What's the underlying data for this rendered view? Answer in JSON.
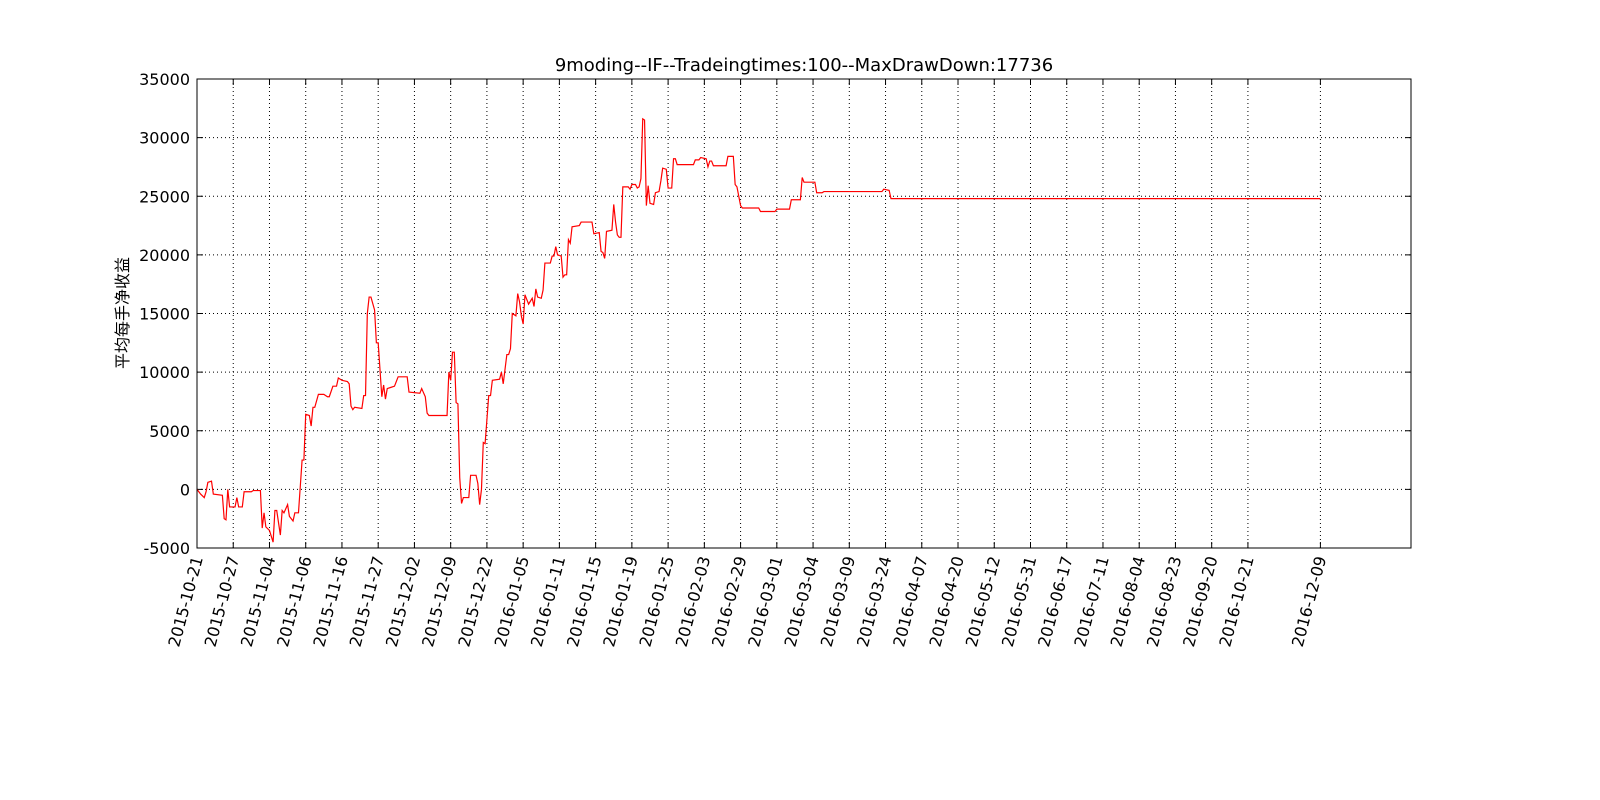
{
  "chart_data": {
    "type": "line",
    "title": "9moding--IF--Tradeingtimes:100--MaxDrawDown:17736",
    "y_label": "平均每手净收益",
    "grid": true,
    "color": "#ff0000",
    "xlim": [
      0,
      670
    ],
    "ylim": [
      -5000,
      35000
    ],
    "yticks": [
      -5000,
      0,
      5000,
      10000,
      15000,
      20000,
      25000,
      30000,
      35000
    ],
    "xticks": [
      {
        "value": 0,
        "label": "2015-10-21"
      },
      {
        "value": 20,
        "label": "2015-10-27"
      },
      {
        "value": 40,
        "label": "2015-11-04"
      },
      {
        "value": 60,
        "label": "2015-11-06"
      },
      {
        "value": 80,
        "label": "2015-11-16"
      },
      {
        "value": 100,
        "label": "2015-11-27"
      },
      {
        "value": 120,
        "label": "2015-12-02"
      },
      {
        "value": 140,
        "label": "2015-12-09"
      },
      {
        "value": 160,
        "label": "2015-12-22"
      },
      {
        "value": 180,
        "label": "2016-01-05"
      },
      {
        "value": 200,
        "label": "2016-01-11"
      },
      {
        "value": 220,
        "label": "2016-01-15"
      },
      {
        "value": 240,
        "label": "2016-01-19"
      },
      {
        "value": 260,
        "label": "2016-01-25"
      },
      {
        "value": 280,
        "label": "2016-02-03"
      },
      {
        "value": 300,
        "label": "2016-02-29"
      },
      {
        "value": 320,
        "label": "2016-03-01"
      },
      {
        "value": 340,
        "label": "2016-03-04"
      },
      {
        "value": 360,
        "label": "2016-03-09"
      },
      {
        "value": 380,
        "label": "2016-03-24"
      },
      {
        "value": 400,
        "label": "2016-04-07"
      },
      {
        "value": 420,
        "label": "2016-04-20"
      },
      {
        "value": 440,
        "label": "2016-05-12"
      },
      {
        "value": 460,
        "label": "2016-05-31"
      },
      {
        "value": 480,
        "label": "2016-06-17"
      },
      {
        "value": 500,
        "label": "2016-07-11"
      },
      {
        "value": 520,
        "label": "2016-08-04"
      },
      {
        "value": 540,
        "label": "2016-08-23"
      },
      {
        "value": 560,
        "label": "2016-09-20"
      },
      {
        "value": 580,
        "label": "2016-10-21"
      },
      {
        "value": 620,
        "label": "2016-12-09"
      }
    ],
    "x": [
      0,
      2,
      4,
      5,
      6,
      8,
      9,
      14,
      15,
      16,
      17,
      18,
      21,
      22,
      23,
      25,
      26,
      30,
      31,
      35,
      36,
      37,
      38,
      40,
      42,
      43,
      44,
      46,
      47,
      48,
      50,
      51,
      53,
      54,
      56,
      58,
      59,
      60,
      62,
      63,
      64,
      65,
      67,
      70,
      72,
      73,
      75,
      77,
      78,
      80,
      83,
      84,
      85,
      86,
      87,
      91,
      92,
      93,
      94,
      95,
      96,
      98,
      99,
      100,
      102,
      103,
      104,
      105,
      107,
      109,
      111,
      116,
      117,
      123,
      124,
      126,
      127,
      128,
      138,
      139,
      140,
      141,
      142,
      143,
      144,
      145,
      146,
      147,
      150,
      151,
      154,
      155,
      156,
      157,
      158,
      159,
      161,
      162,
      163,
      167,
      168,
      169,
      171,
      172,
      173,
      174,
      176,
      177,
      178,
      179,
      180,
      181,
      182,
      183,
      185,
      186,
      187,
      188,
      190,
      191,
      192,
      195,
      196,
      197,
      198,
      199,
      201,
      202,
      203,
      204,
      205,
      206,
      207,
      211,
      212,
      218,
      219,
      222,
      223,
      224,
      225,
      226,
      229,
      230,
      231,
      232,
      233,
      234,
      235,
      238,
      239,
      240,
      242,
      243,
      244,
      245,
      246,
      247,
      248,
      249,
      250,
      252,
      253,
      255,
      256,
      257,
      259,
      260,
      262,
      263,
      264,
      265,
      274,
      275,
      277,
      278,
      281,
      282,
      283,
      284,
      285,
      292,
      293,
      296,
      297,
      298,
      300,
      301,
      310,
      311,
      319,
      320,
      327,
      328,
      333,
      334,
      335,
      341,
      342,
      345,
      346,
      378,
      379,
      382,
      383,
      620
    ],
    "values": [
      0,
      -400,
      -700,
      -200,
      600,
      700,
      -400,
      -500,
      -2500,
      -2600,
      0,
      -1500,
      -1500,
      -700,
      -1500,
      -1500,
      -200,
      -200,
      -100,
      -100,
      -3300,
      -2000,
      -3200,
      -3500,
      -4500,
      -1800,
      -1800,
      -3900,
      -1800,
      -2000,
      -1300,
      -2300,
      -2700,
      -2000,
      -2000,
      2500,
      2500,
      6400,
      6300,
      5400,
      7000,
      7000,
      8100,
      8100,
      7900,
      7900,
      8800,
      8800,
      9500,
      9300,
      9200,
      9000,
      7100,
      6800,
      7000,
      6900,
      8000,
      8000,
      15000,
      16400,
      16400,
      15300,
      12500,
      12500,
      7900,
      8900,
      7700,
      8600,
      8700,
      8800,
      9600,
      9600,
      8300,
      8200,
      8600,
      7900,
      6500,
      6300,
      6300,
      10000,
      9300,
      11700,
      11700,
      7400,
      7300,
      1000,
      -1200,
      -700,
      -700,
      1200,
      1200,
      500,
      -1300,
      0,
      4000,
      3900,
      8000,
      8000,
      9300,
      9400,
      10000,
      9000,
      11500,
      11500,
      12000,
      15000,
      14800,
      16700,
      16000,
      14800,
      14100,
      16600,
      16200,
      15800,
      16300,
      15600,
      17100,
      16400,
      16300,
      17000,
      19300,
      19300,
      19900,
      19900,
      20700,
      20000,
      19900,
      18100,
      18300,
      18300,
      21300,
      21000,
      22400,
      22500,
      22800,
      22800,
      21800,
      21900,
      20300,
      20200,
      19700,
      22000,
      22100,
      24300,
      22800,
      21700,
      21500,
      21500,
      25800,
      25800,
      25600,
      26000,
      26000,
      25700,
      25800,
      26500,
      31600,
      31500,
      24200,
      25900,
      24400,
      24300,
      25300,
      25400,
      26300,
      27400,
      27300,
      25700,
      25700,
      28200,
      28200,
      27700,
      27700,
      28100,
      28100,
      28300,
      28200,
      27500,
      28000,
      28000,
      27600,
      27600,
      28400,
      28400,
      26000,
      25800,
      24200,
      24000,
      24000,
      23700,
      23700,
      23900,
      23900,
      24700,
      24700,
      26600,
      26200,
      26200,
      25300,
      25300,
      25400,
      25400,
      25600,
      25500,
      24800,
      24800
    ]
  }
}
